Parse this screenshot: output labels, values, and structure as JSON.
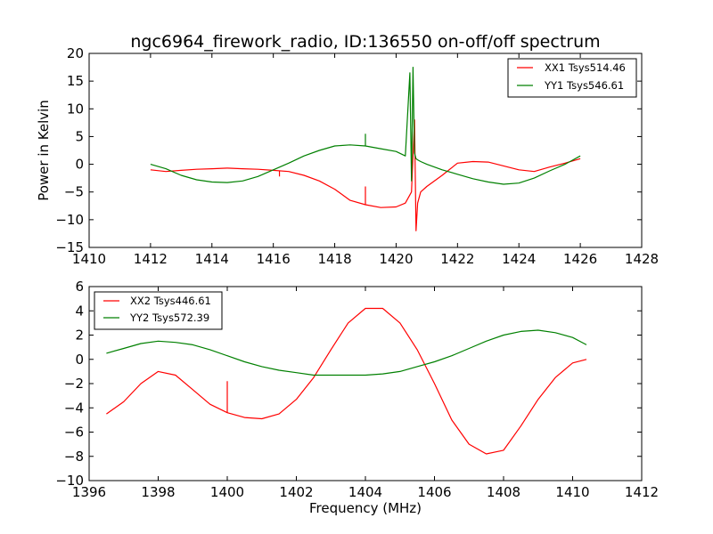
{
  "figure": {
    "title": "ngc6964_firework_radio, ID:136550 on-off/off spectrum"
  },
  "colors": {
    "red": "#ff0000",
    "green": "#008000"
  },
  "chart_data": [
    {
      "type": "line",
      "ylabel": "Power in Kelvin",
      "xlabel": "",
      "xlim": [
        1410,
        1428
      ],
      "ylim": [
        -15,
        20
      ],
      "xticks": [
        1410,
        1412,
        1414,
        1416,
        1418,
        1420,
        1422,
        1424,
        1426,
        1428
      ],
      "yticks": [
        -15,
        -10,
        -5,
        0,
        5,
        10,
        15,
        20
      ],
      "legend_position": "top-right",
      "grid": false,
      "series": [
        {
          "name": "XX1 Tsys514.46",
          "color": "#ff0000",
          "x": [
            1412,
            1412.5,
            1413,
            1413.5,
            1414,
            1414.5,
            1415,
            1415.5,
            1416,
            1416.5,
            1417,
            1417.5,
            1418,
            1418.5,
            1419,
            1419.5,
            1420,
            1420.3,
            1420.5,
            1420.6,
            1420.65,
            1420.7,
            1420.8,
            1421,
            1421.5,
            1422,
            1422.5,
            1423,
            1423.5,
            1424,
            1424.5,
            1425,
            1425.5,
            1426
          ],
          "y": [
            -1.0,
            -1.3,
            -1.1,
            -0.9,
            -0.8,
            -0.7,
            -0.8,
            -0.9,
            -1.1,
            -1.3,
            -2.0,
            -3.0,
            -4.5,
            -6.5,
            -7.3,
            -7.8,
            -7.7,
            -7.0,
            -5.0,
            8.0,
            -12.0,
            -7.0,
            -5.0,
            -4.0,
            -2.0,
            0.2,
            0.5,
            0.4,
            -0.3,
            -1.0,
            -1.3,
            -0.5,
            0.2,
            1.0
          ]
        },
        {
          "name": "YY1 Tsys546.61",
          "color": "#008000",
          "x": [
            1412,
            1412.5,
            1413,
            1413.5,
            1414,
            1414.5,
            1415,
            1415.5,
            1416,
            1416.5,
            1417,
            1417.5,
            1418,
            1418.5,
            1419,
            1419.5,
            1420,
            1420.3,
            1420.45,
            1420.5,
            1420.55,
            1420.6,
            1420.65,
            1420.7,
            1420.8,
            1421,
            1421.5,
            1422,
            1422.5,
            1423,
            1423.5,
            1424,
            1424.5,
            1425,
            1425.5,
            1426
          ],
          "y": [
            0.0,
            -0.8,
            -2.0,
            -2.8,
            -3.2,
            -3.3,
            -3.0,
            -2.2,
            -1.0,
            0.2,
            1.5,
            2.5,
            3.3,
            3.5,
            3.3,
            2.8,
            2.3,
            1.5,
            16.5,
            -3.0,
            17.5,
            2.0,
            1.0,
            0.8,
            0.5,
            0.0,
            -1.0,
            -1.8,
            -2.6,
            -3.2,
            -3.6,
            -3.4,
            -2.5,
            -1.2,
            0.0,
            1.5
          ]
        }
      ],
      "spikes": [
        {
          "series": 0,
          "x": 1416.2,
          "y": -2.2
        },
        {
          "series": 0,
          "x": 1419.0,
          "y": -4.0
        },
        {
          "series": 1,
          "x": 1419.0,
          "y": 5.5
        }
      ]
    },
    {
      "type": "line",
      "ylabel": "",
      "xlabel": "Frequency (MHz)",
      "xlim": [
        1396,
        1412
      ],
      "ylim": [
        -10,
        6
      ],
      "xticks": [
        1396,
        1398,
        1400,
        1402,
        1404,
        1406,
        1408,
        1410,
        1412
      ],
      "yticks": [
        -10,
        -8,
        -6,
        -4,
        -2,
        0,
        2,
        4,
        6
      ],
      "legend_position": "top-left",
      "grid": false,
      "series": [
        {
          "name": "XX2 Tsys446.61",
          "color": "#ff0000",
          "x": [
            1396.5,
            1397,
            1397.5,
            1398,
            1398.5,
            1399,
            1399.5,
            1400,
            1400.5,
            1401,
            1401.5,
            1402,
            1402.5,
            1403,
            1403.5,
            1404,
            1404.5,
            1405,
            1405.5,
            1406,
            1406.5,
            1407,
            1407.5,
            1408,
            1408.5,
            1409,
            1409.5,
            1410,
            1410.4
          ],
          "y": [
            -4.5,
            -3.5,
            -2.0,
            -1.0,
            -1.3,
            -2.5,
            -3.7,
            -4.4,
            -4.8,
            -4.9,
            -4.5,
            -3.3,
            -1.5,
            0.8,
            3.0,
            4.2,
            4.2,
            3.0,
            0.8,
            -2.0,
            -5.0,
            -7.0,
            -7.8,
            -7.5,
            -5.5,
            -3.3,
            -1.5,
            -0.3,
            0.0
          ]
        },
        {
          "name": "YY2 Tsys572.39",
          "color": "#008000",
          "x": [
            1396.5,
            1397,
            1397.5,
            1398,
            1398.5,
            1399,
            1399.5,
            1400,
            1400.5,
            1401,
            1401.5,
            1402,
            1402.5,
            1403,
            1403.5,
            1404,
            1404.5,
            1405,
            1405.5,
            1406,
            1406.5,
            1407,
            1407.5,
            1408,
            1408.5,
            1409,
            1409.5,
            1410,
            1410.4
          ],
          "y": [
            0.5,
            0.9,
            1.3,
            1.5,
            1.4,
            1.2,
            0.8,
            0.3,
            -0.2,
            -0.6,
            -0.9,
            -1.1,
            -1.3,
            -1.3,
            -1.3,
            -1.3,
            -1.2,
            -1.0,
            -0.6,
            -0.2,
            0.3,
            0.9,
            1.5,
            2.0,
            2.3,
            2.4,
            2.2,
            1.8,
            1.2
          ]
        }
      ],
      "spikes": [
        {
          "series": 0,
          "x": 1400.0,
          "y": -1.8
        }
      ]
    }
  ]
}
